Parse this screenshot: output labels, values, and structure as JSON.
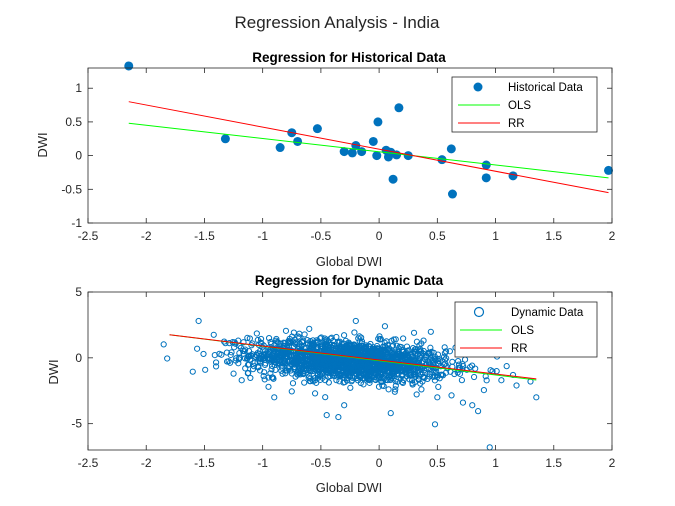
{
  "figure": {
    "title": "Regression Analysis - India"
  },
  "chart_data": [
    {
      "type": "scatter",
      "title": "Regression for Historical Data",
      "xlabel": "Global DWI",
      "ylabel": "DWI",
      "xlim": [
        -2.5,
        2
      ],
      "ylim": [
        -1,
        1.3
      ],
      "xticks": [
        "-2.5",
        "-2",
        "-1.5",
        "-1",
        "-0.5",
        "0",
        "0.5",
        "1",
        "1.5",
        "2"
      ],
      "yticks": [
        "-1",
        "-0.5",
        "0",
        "0.5",
        "1"
      ],
      "xtick_values": [
        -2.5,
        -2,
        -1.5,
        -1,
        -0.5,
        0,
        0.5,
        1,
        1.5,
        2
      ],
      "ytick_values": [
        -1,
        -0.5,
        0,
        0.5,
        1
      ],
      "grid": false,
      "legend_position": "top-right",
      "colors": {
        "points": "#0072BD",
        "ols": "#00FF00",
        "rr": "#FF0000"
      },
      "series": [
        {
          "name": "Historical Data",
          "marker": "filled-circle",
          "points": [
            [
              -2.15,
              1.33
            ],
            [
              -1.32,
              0.25
            ],
            [
              -0.85,
              0.12
            ],
            [
              -0.75,
              0.34
            ],
            [
              -0.7,
              0.21
            ],
            [
              -0.53,
              0.4
            ],
            [
              -0.3,
              0.06
            ],
            [
              -0.23,
              0.04
            ],
            [
              -0.2,
              0.15
            ],
            [
              -0.15,
              0.06
            ],
            [
              -0.05,
              0.21
            ],
            [
              -0.02,
              0.0
            ],
            [
              -0.01,
              0.5
            ],
            [
              0.06,
              0.08
            ],
            [
              0.08,
              -0.02
            ],
            [
              0.1,
              0.05
            ],
            [
              0.12,
              -0.35
            ],
            [
              0.15,
              0.01
            ],
            [
              0.17,
              0.71
            ],
            [
              0.25,
              0.0
            ],
            [
              0.54,
              -0.06
            ],
            [
              0.62,
              0.1
            ],
            [
              0.63,
              -0.57
            ],
            [
              0.92,
              -0.14
            ],
            [
              0.92,
              -0.33
            ],
            [
              1.15,
              -0.3
            ],
            [
              1.97,
              -0.22
            ]
          ]
        },
        {
          "name": "OLS",
          "line": [
            [
              -2.15,
              0.48
            ],
            [
              1.97,
              -0.33
            ]
          ]
        },
        {
          "name": "RR",
          "line": [
            [
              -2.15,
              0.8
            ],
            [
              1.97,
              -0.55
            ]
          ]
        }
      ]
    },
    {
      "type": "scatter",
      "title": "Regression for Dynamic Data",
      "xlabel": "Global DWI",
      "ylabel": "DWI",
      "xlim": [
        -2.5,
        2
      ],
      "ylim": [
        -7,
        5
      ],
      "xticks": [
        "-2.5",
        "-2",
        "-1.5",
        "-1",
        "-0.5",
        "0",
        "0.5",
        "1",
        "1.5",
        "2"
      ],
      "yticks": [
        "-5",
        "0",
        "5"
      ],
      "xtick_values": [
        -2.5,
        -2,
        -1.5,
        -1,
        -0.5,
        0,
        0.5,
        1,
        1.5,
        2
      ],
      "ytick_values": [
        -5,
        0,
        5
      ],
      "grid": false,
      "legend_position": "top-right",
      "colors": {
        "points": "#0072BD",
        "ols": "#00FF00",
        "rr": "#FF0000"
      },
      "series": [
        {
          "name": "Dynamic Data",
          "marker": "open-circle",
          "cloud": {
            "count": 1800,
            "x_mean": -0.25,
            "x_sd": 0.42,
            "y_intercept": -0.35,
            "y_slope": -0.55,
            "y_sd": 0.75,
            "x_range": [
              -1.85,
              1.35
            ],
            "y_range": [
              -6.8,
              3.2
            ]
          },
          "points": [
            [
              -1.82,
              -0.05
            ],
            [
              -1.55,
              2.8
            ],
            [
              -1.42,
              1.75
            ],
            [
              -1.4,
              -0.35
            ],
            [
              -1.4,
              -0.65
            ],
            [
              -1.25,
              -1.2
            ],
            [
              -1.2,
              0.9
            ],
            [
              -1.18,
              -1.7
            ],
            [
              -1.15,
              -0.8
            ],
            [
              -0.95,
              -1.5
            ],
            [
              -0.95,
              -2.2
            ],
            [
              -0.75,
              -2.55
            ],
            [
              -0.55,
              -2.7
            ],
            [
              -0.45,
              -4.35
            ],
            [
              -0.35,
              -4.5
            ],
            [
              -0.3,
              -3.6
            ],
            [
              -0.2,
              2.8
            ],
            [
              0.1,
              -4.2
            ],
            [
              0.5,
              -3.0
            ],
            [
              0.48,
              -5.05
            ],
            [
              0.72,
              -3.4
            ],
            [
              0.8,
              -3.6
            ],
            [
              0.85,
              -4.05
            ],
            [
              0.95,
              -6.8
            ],
            [
              1.15,
              -1.3
            ],
            [
              1.18,
              -2.1
            ],
            [
              1.3,
              -1.8
            ],
            [
              1.35,
              -3.0
            ],
            [
              0.9,
              -2.45
            ],
            [
              1.05,
              -1.7
            ],
            [
              -1.05,
              1.85
            ],
            [
              -0.8,
              2.05
            ],
            [
              -0.6,
              2.2
            ],
            [
              0.05,
              2.4
            ],
            [
              0.3,
              1.9
            ]
          ]
        },
        {
          "name": "OLS",
          "line": [
            [
              -1.8,
              1.75
            ],
            [
              1.35,
              -1.68
            ]
          ]
        },
        {
          "name": "RR",
          "line": [
            [
              -1.8,
              1.75
            ],
            [
              1.35,
              -1.6
            ]
          ]
        }
      ]
    }
  ]
}
